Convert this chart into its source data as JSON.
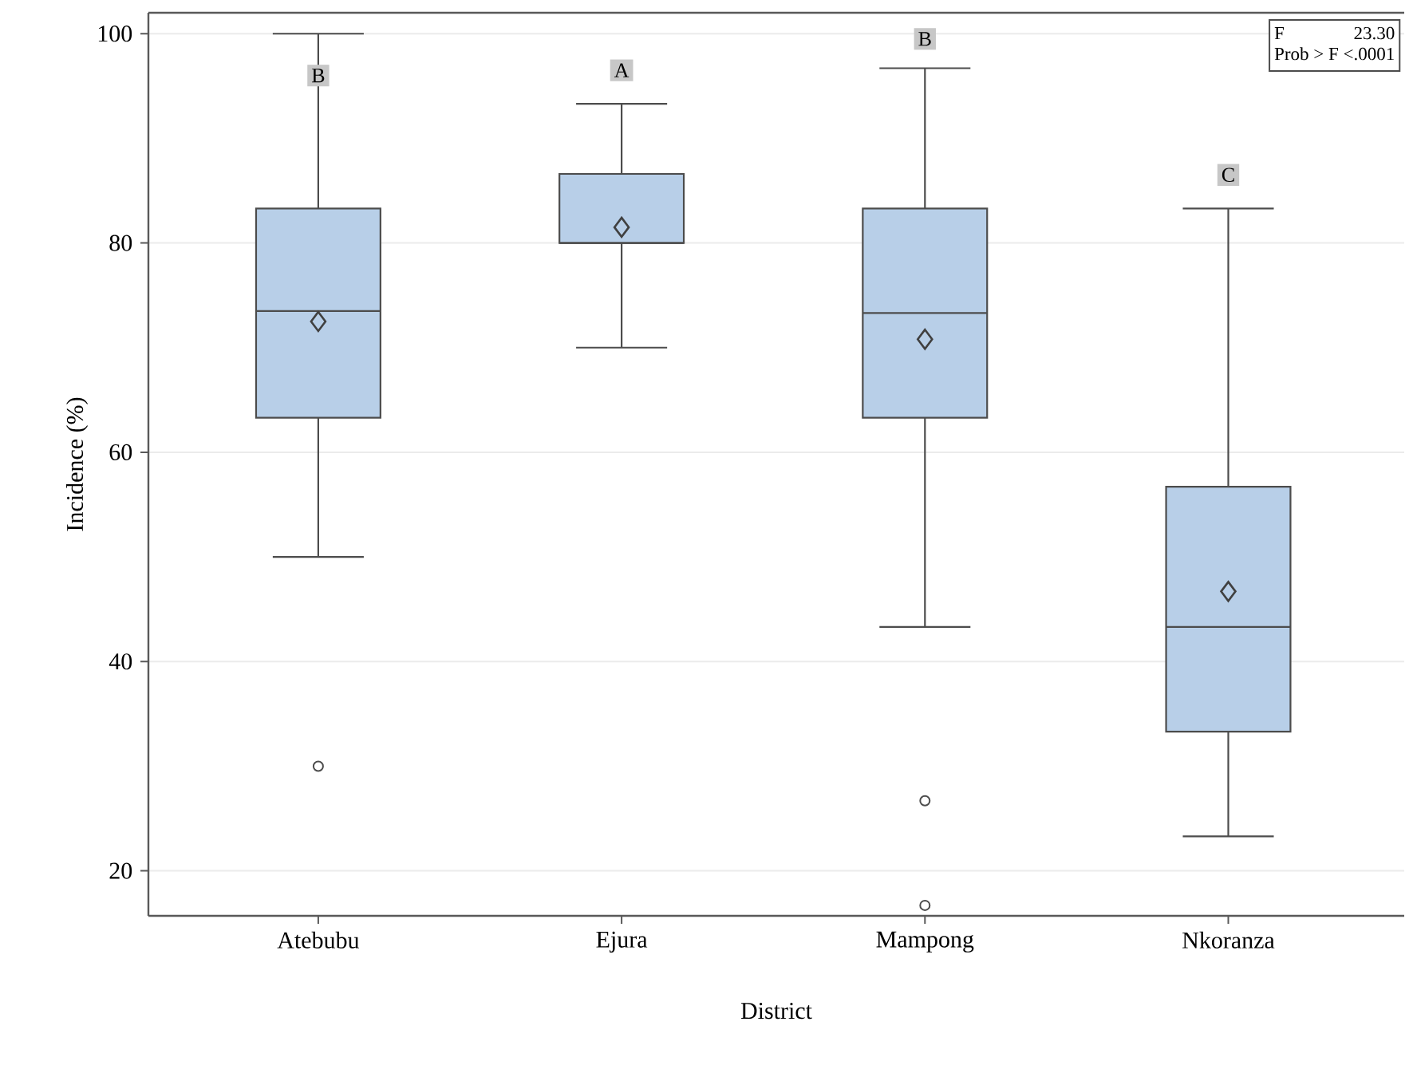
{
  "chart_data": {
    "type": "box",
    "xlabel": "District",
    "ylabel": "Incidence (%)",
    "categories": [
      "Atebubu",
      "Ejura",
      "Mampong",
      "Nkoranza"
    ],
    "boxes": [
      {
        "low": 50,
        "q1": 63.3,
        "median": 73.5,
        "q3": 83.3,
        "high": 100,
        "mean": 72.5,
        "outliers": [
          30
        ]
      },
      {
        "low": 70,
        "q1": 80,
        "median": 80,
        "q3": 86.6,
        "high": 93.3,
        "mean": 81.5
      },
      {
        "low": 43.3,
        "q1": 63.3,
        "median": 73.3,
        "q3": 83.3,
        "high": 96.7,
        "mean": 70.8,
        "outliers": [
          26.7,
          16.7
        ]
      },
      {
        "low": 23.3,
        "q1": 33.3,
        "median": 43.3,
        "q3": 56.7,
        "high": 83.3,
        "mean": 46.7
      }
    ],
    "color": "#b8cfe8",
    "ylim": [
      15.7,
      102
    ],
    "yticks": [
      20,
      40,
      60,
      80,
      100
    ],
    "grid": "y",
    "annotations": [
      {
        "text": "B",
        "x": "Atebubu",
        "y": 96
      },
      {
        "text": "A",
        "x": "Ejura",
        "y": 96.5
      },
      {
        "text": "B",
        "x": "Mampong",
        "y": 99.5
      },
      {
        "text": "C",
        "x": "Nkoranza",
        "y": 86.5
      },
      "F",
      "23.30",
      "Prob > F <.0001"
    ]
  }
}
